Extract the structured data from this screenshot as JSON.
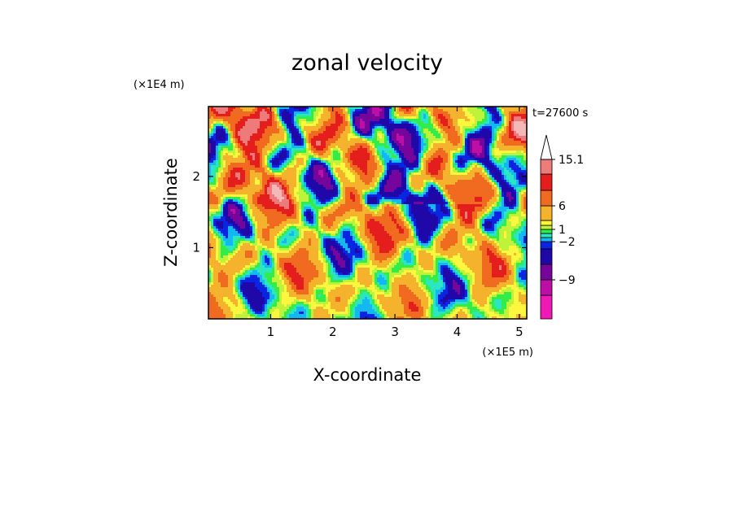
{
  "chart_data": {
    "type": "heatmap",
    "title": "zonal velocity",
    "xlabel": "X-coordinate",
    "ylabel": "Z-coordinate",
    "x_unit": "(×1E5 m)",
    "y_unit": "(×1E4 m)",
    "time_label": "t=27600 s",
    "xlim": [
      0,
      5.12
    ],
    "ylim": [
      0,
      2.98
    ],
    "x_ticks": [
      1,
      2,
      3,
      4,
      5
    ],
    "y_ticks": [
      1,
      2
    ],
    "colorbar": {
      "levels": [
        -15,
        -12,
        -9,
        -6,
        -3,
        -2,
        -1,
        0,
        1,
        2,
        3,
        6,
        9,
        12,
        15.1
      ],
      "colors": [
        "#ef19b5",
        "#bd0fa6",
        "#76059b",
        "#2007a7",
        "#0a25e2",
        "#13b8f2",
        "#2ce6c2",
        "#33ec4a",
        "#bff23a",
        "#fff63f",
        "#f5b32d",
        "#f06a1f",
        "#e41e1d",
        "#ef7a7a",
        "#f5b8b8"
      ],
      "tick_labels": [
        "15.1",
        "6",
        "1",
        "−2",
        "−9"
      ],
      "tick_values": [
        15.1,
        6,
        1,
        -2,
        -9
      ],
      "extend": "max"
    }
  }
}
